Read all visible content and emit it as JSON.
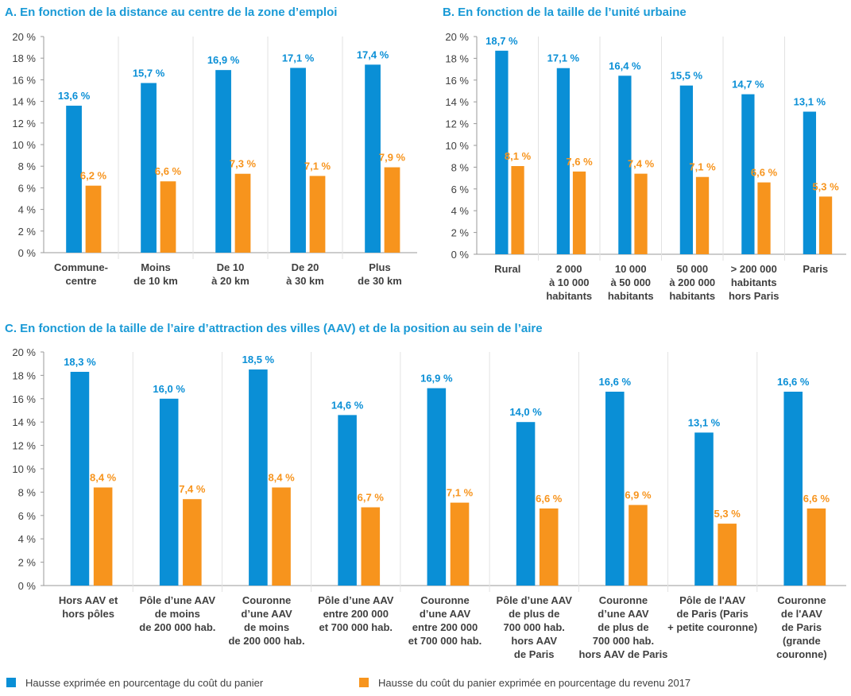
{
  "chart_data": [
    {
      "type": "bar",
      "title": "A. En fonction de la distance au centre de la zone d’emploi",
      "categories": [
        "Commune-\ncentre",
        "Moins\nde 10 km",
        "De 10\nà 20 km",
        "De 20\nà 30 km",
        "Plus\nde 30 km"
      ],
      "series": [
        {
          "color": "#0a8fd6",
          "values": [
            13.6,
            15.7,
            16.9,
            17.1,
            17.4
          ],
          "value_labels": [
            "13,6 %",
            "15,7 %",
            "16,9 %",
            "17,1 %",
            "17,4 %"
          ]
        },
        {
          "color": "#f7941d",
          "values": [
            6.2,
            6.6,
            7.3,
            7.1,
            7.9
          ],
          "value_labels": [
            "6,2 %",
            "6,6 %",
            "7,3 %",
            "7,1 %",
            "7,9 %"
          ]
        }
      ],
      "ylim": [
        0,
        20
      ],
      "yticks": [
        {
          "value": 0,
          "label": "0 %"
        },
        {
          "value": 2,
          "label": "2 %"
        },
        {
          "value": 4,
          "label": "4 %"
        },
        {
          "value": 6,
          "label": "6 %"
        },
        {
          "value": 8,
          "label": "8 %"
        },
        {
          "value": 10,
          "label": "10 %"
        },
        {
          "value": 12,
          "label": "12 %"
        },
        {
          "value": 14,
          "label": "14 %"
        },
        {
          "value": 16,
          "label": "16 %"
        },
        {
          "value": 18,
          "label": "18 %"
        },
        {
          "value": 20,
          "label": "20 %"
        }
      ]
    },
    {
      "type": "bar",
      "title": "B. En fonction de la taille de l’unité urbaine",
      "categories": [
        "Rural",
        "2 000\nà 10 000\nhabitants",
        "10 000\nà 50 000\nhabitants",
        "50 000\nà 200 000\nhabitants",
        "> 200 000\nhabitants\nhors Paris",
        "Paris"
      ],
      "series": [
        {
          "color": "#0a8fd6",
          "values": [
            18.7,
            17.1,
            16.4,
            15.5,
            14.7,
            13.1
          ],
          "value_labels": [
            "18,7 %",
            "17,1 %",
            "16,4 %",
            "15,5 %",
            "14,7 %",
            "13,1 %"
          ]
        },
        {
          "color": "#f7941d",
          "values": [
            8.1,
            7.6,
            7.4,
            7.1,
            6.6,
            5.3
          ],
          "value_labels": [
            "8,1 %",
            "7,6 %",
            "7,4 %",
            "7,1 %",
            "6,6 %",
            "5,3 %"
          ]
        }
      ],
      "ylim": [
        0,
        20
      ],
      "yticks": [
        {
          "value": 0,
          "label": "0 %"
        },
        {
          "value": 2,
          "label": "2 %"
        },
        {
          "value": 4,
          "label": "4 %"
        },
        {
          "value": 6,
          "label": "6 %"
        },
        {
          "value": 8,
          "label": "8 %"
        },
        {
          "value": 10,
          "label": "10 %"
        },
        {
          "value": 12,
          "label": "12 %"
        },
        {
          "value": 14,
          "label": "14 %"
        },
        {
          "value": 16,
          "label": "16 %"
        },
        {
          "value": 18,
          "label": "18 %"
        },
        {
          "value": 20,
          "label": "20 %"
        }
      ]
    },
    {
      "type": "bar",
      "title": "C. En fonction de la taille de l’aire d’attraction des villes (AAV) et de la position au sein de l’aire",
      "categories": [
        "Hors AAV et\nhors pôles",
        "Pôle d’une AAV\nde moins\nde 200 000 hab.",
        "Couronne\nd’une AAV\nde moins\nde 200 000 hab.",
        "Pôle d’une AAV\nentre 200 000\net 700 000 hab.",
        "Couronne\nd’une AAV\nentre 200 000\net 700 000 hab.",
        "Pôle d’une AAV\nde plus de\n700 000 hab.\nhors AAV\nde Paris",
        "Couronne\nd’une AAV\nde plus de\n700 000 hab.\nhors AAV de Paris",
        "Pôle de l'AAV\nde Paris (Paris\n+ petite couronne)",
        "Couronne\nde l'AAV\nde Paris\n(grande\ncouronne)"
      ],
      "series": [
        {
          "name": "Hausse exprimée en pourcentage du coût du panier",
          "color": "#0a8fd6",
          "values": [
            18.3,
            16.0,
            18.5,
            14.6,
            16.9,
            14.0,
            16.6,
            13.1,
            16.6
          ],
          "value_labels": [
            "18,3 %",
            "16,0 %",
            "18,5 %",
            "14,6 %",
            "16,9 %",
            "14,0 %",
            "16,6 %",
            "13,1 %",
            "16,6 %"
          ]
        },
        {
          "name": "Hausse du coût du panier exprimée en pourcentage du revenu 2017",
          "color": "#f7941d",
          "values": [
            8.4,
            7.4,
            8.4,
            6.7,
            7.1,
            6.6,
            6.9,
            5.3,
            6.6
          ],
          "value_labels": [
            "8,4 %",
            "7,4 %",
            "8,4 %",
            "6,7 %",
            "7,1 %",
            "6,6 %",
            "6,9 %",
            "5,3 %",
            "6,6 %"
          ]
        }
      ],
      "ylim": [
        0,
        20
      ],
      "yticks": [
        {
          "value": 0,
          "label": "0 %"
        },
        {
          "value": 2,
          "label": "2 %"
        },
        {
          "value": 4,
          "label": "4 %"
        },
        {
          "value": 6,
          "label": "6 %"
        },
        {
          "value": 8,
          "label": "8 %"
        },
        {
          "value": 10,
          "label": "10 %"
        },
        {
          "value": 12,
          "label": "12 %"
        },
        {
          "value": 14,
          "label": "14 %"
        },
        {
          "value": 16,
          "label": "16 %"
        },
        {
          "value": 18,
          "label": "18 %"
        },
        {
          "value": 20,
          "label": "20 %"
        }
      ]
    }
  ]
}
